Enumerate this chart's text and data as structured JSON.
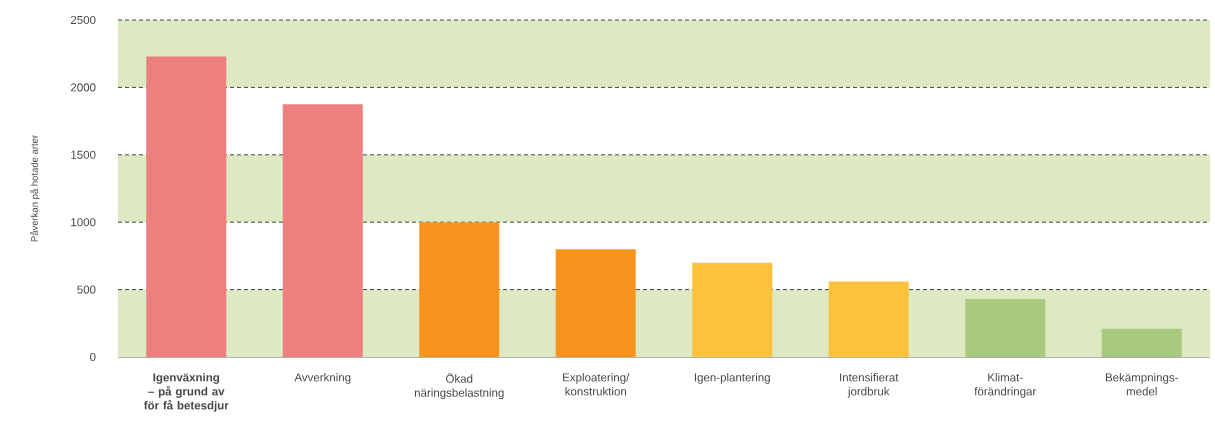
{
  "chart_data": {
    "type": "bar",
    "ylabel": "Påverkan på hotade arter",
    "categories": [
      "**Igenväxning – på grund av för få betesdjur**",
      "Avverkning",
      "Ökad näringsbelastning",
      "Exploatering/ konstruktion",
      "Igen-plantering",
      "Intensifierat jordbruk",
      "Klimat-förändringar",
      "Bekämpnings-medel"
    ],
    "values": [
      2230,
      1875,
      1000,
      800,
      700,
      560,
      430,
      210
    ],
    "colors": [
      "#ee7f7f",
      "#ee7f7f",
      "#f7941e",
      "#f7941e",
      "#fdc13a",
      "#fdc13a",
      "#a9c97f",
      "#a9c97f"
    ],
    "ylim": [
      0,
      2500
    ],
    "yticks": [
      0,
      500,
      1000,
      1500,
      2000,
      2500
    ],
    "grid": "y",
    "bands": [
      {
        "axis": "y",
        "from": 0,
        "to": 500,
        "color": "#dce9c2"
      },
      {
        "axis": "y",
        "from": 1000,
        "to": 1500,
        "color": "#dce9c2"
      },
      {
        "axis": "y",
        "from": 2000,
        "to": 2500,
        "color": "#dce9c2"
      }
    ]
  }
}
